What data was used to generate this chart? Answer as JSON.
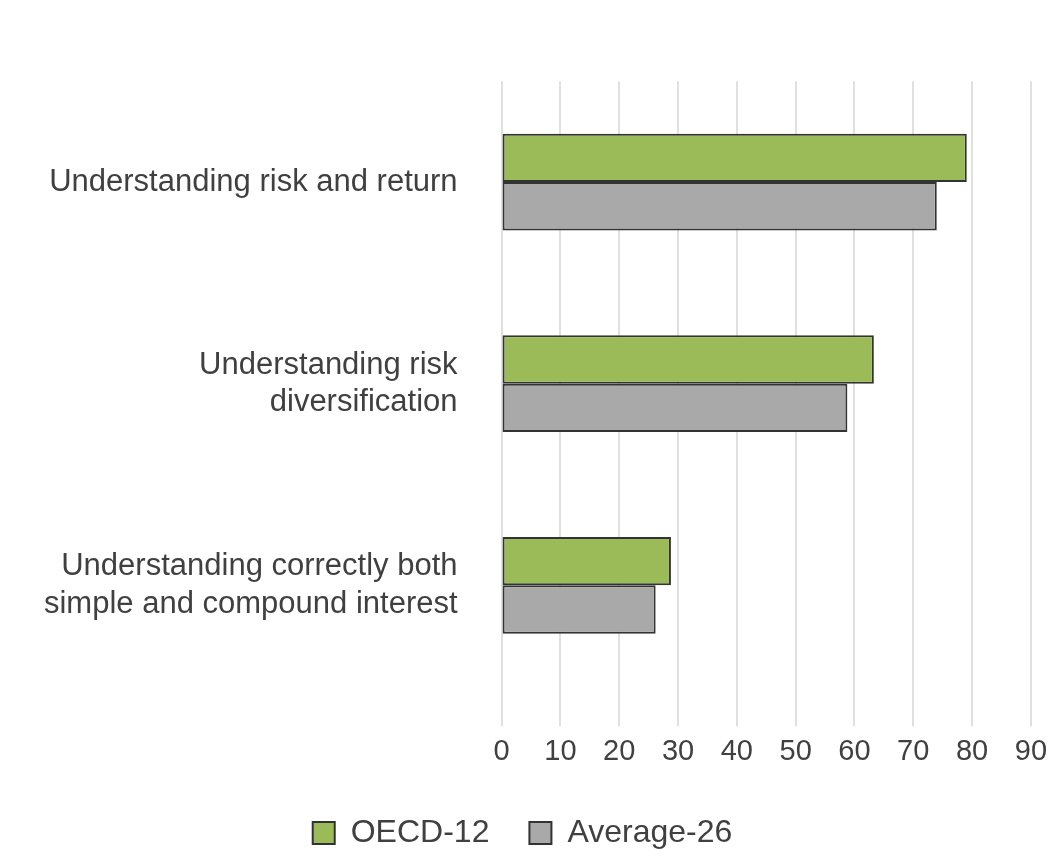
{
  "chart_data": {
    "type": "bar",
    "orientation": "horizontal",
    "categories": [
      "Understanding risk and return",
      "Understanding risk diversification",
      "Understanding correctly both simple and compound interest"
    ],
    "series": [
      {
        "name": "OECD-12",
        "color": "#9bbb59",
        "values": [
          79.1,
          63.3,
          28.8
        ]
      },
      {
        "name": "Average-26",
        "color": "#a9a9a9",
        "values": [
          74.0,
          58.8,
          26.2
        ]
      }
    ],
    "xlim": [
      0,
      90
    ],
    "xticks": [
      0,
      10,
      20,
      30,
      40,
      50,
      60,
      70,
      80,
      90
    ],
    "grid": "x",
    "legend": "bottom"
  }
}
